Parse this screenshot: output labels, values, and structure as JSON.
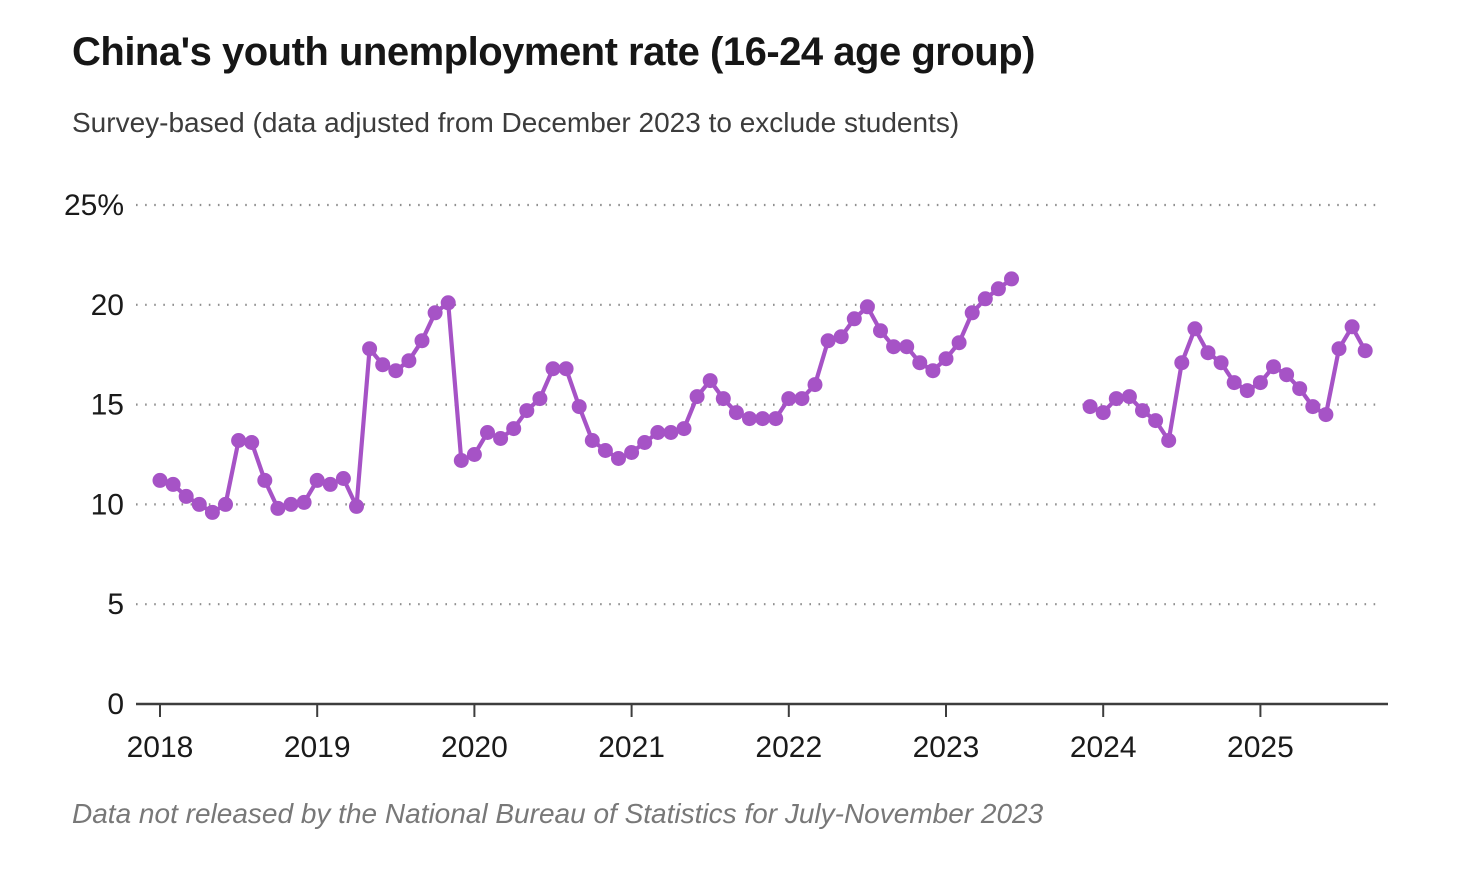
{
  "header": {
    "title": "China's youth unemployment rate (16-24 age group)",
    "subtitle": "Survey-based (data adjusted from December 2023 to exclude students)"
  },
  "footnote": "Data not released by the National Bureau of Statistics for July-November 2023",
  "chart_data": {
    "type": "line",
    "title": "China's youth unemployment rate (16-24 age group)",
    "subtitle": "Survey-based (data adjusted from December 2023 to exclude students)",
    "unit": "%",
    "frequency": "monthly",
    "start_month": "2018-01",
    "end_month": "2025-09",
    "gap_months": [
      "2023-07",
      "2023-08",
      "2023-09",
      "2023-10",
      "2023-11"
    ],
    "gap_note": "Data not released by the National Bureau of Statistics for July-November 2023",
    "ylim": [
      0,
      25
    ],
    "yticks": [
      0,
      5,
      10,
      15,
      20,
      25
    ],
    "ytick_labels": [
      "0",
      "5",
      "10",
      "15",
      "20",
      "25%"
    ],
    "xticks": [
      "2018",
      "2019",
      "2020",
      "2021",
      "2022",
      "2023",
      "2024",
      "2025"
    ],
    "grid": "horizontal dotted",
    "legend": "none",
    "line_color": "#a653c6",
    "marker_color": "#a653c6",
    "grid_color": "#8f8f8f",
    "axis_color": "#3d3d3d",
    "series": [
      {
        "name": "Youth unemployment rate, 16-24 age group, survey-based",
        "values": [
          11.2,
          11.0,
          10.4,
          10.0,
          9.6,
          10.0,
          13.2,
          13.1,
          11.2,
          9.8,
          10.0,
          10.1,
          11.2,
          11.0,
          11.3,
          9.9,
          17.8,
          17.0,
          16.7,
          17.2,
          18.2,
          19.6,
          20.1,
          12.2,
          12.5,
          13.6,
          13.3,
          13.8,
          14.7,
          15.3,
          16.8,
          16.8,
          14.9,
          13.2,
          12.7,
          12.3,
          12.6,
          13.1,
          13.6,
          13.6,
          13.8,
          15.4,
          16.2,
          15.3,
          14.6,
          14.3,
          14.3,
          14.3,
          15.3,
          15.3,
          16.0,
          18.2,
          18.4,
          19.3,
          19.9,
          18.7,
          17.9,
          17.9,
          17.1,
          16.7,
          17.3,
          18.1,
          19.6,
          20.3,
          20.8,
          21.3,
          null,
          null,
          null,
          null,
          null,
          14.9,
          14.6,
          15.3,
          15.4,
          14.7,
          14.2,
          13.2,
          17.1,
          18.8,
          17.6,
          17.1,
          16.1,
          15.7,
          16.1,
          16.9,
          16.5,
          15.8,
          14.9,
          14.5,
          17.8,
          18.9,
          17.7
        ]
      }
    ]
  }
}
